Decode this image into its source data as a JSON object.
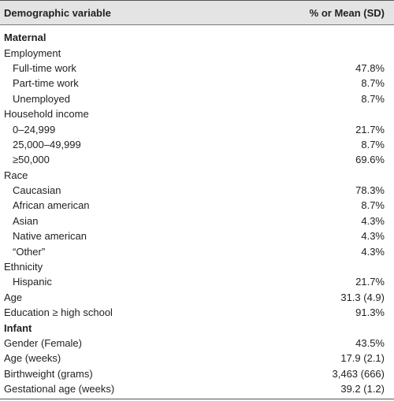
{
  "table": {
    "header": [
      "Demographic variable",
      "% or Mean (SD)"
    ],
    "rows": [
      [
        "Maternal"
      ],
      [
        "Employment"
      ],
      [
        "Full-time work",
        "47.8%"
      ],
      [
        "Part-time work",
        "8.7%"
      ],
      [
        "Unemployed",
        "8.7%"
      ],
      [
        "Household income"
      ],
      [
        "0–24,999",
        "21.7%"
      ],
      [
        "25,000–49,999",
        "8.7%"
      ],
      [
        "≥50,000",
        "69.6%"
      ],
      [
        "Race"
      ],
      [
        "Caucasian",
        "78.3%"
      ],
      [
        "African american",
        "8.7%"
      ],
      [
        "Asian",
        "4.3%"
      ],
      [
        "Native american",
        "4.3%"
      ],
      [
        "“Other”",
        "4.3%"
      ],
      [
        "Ethnicity"
      ],
      [
        "Hispanic",
        "21.7%"
      ],
      [
        "Age",
        "31.3 (4.9)"
      ],
      [
        "Education ≥ high school",
        "91.3%"
      ],
      [
        "Infant"
      ],
      [
        "Gender (Female)",
        "43.5%"
      ],
      [
        "Age (weeks)",
        "17.9 (2.1)"
      ],
      [
        "Birthweight (grams)",
        "3,463 (666)"
      ],
      [
        "Gestational age (weeks)",
        "39.2 (1.2)"
      ]
    ]
  }
}
